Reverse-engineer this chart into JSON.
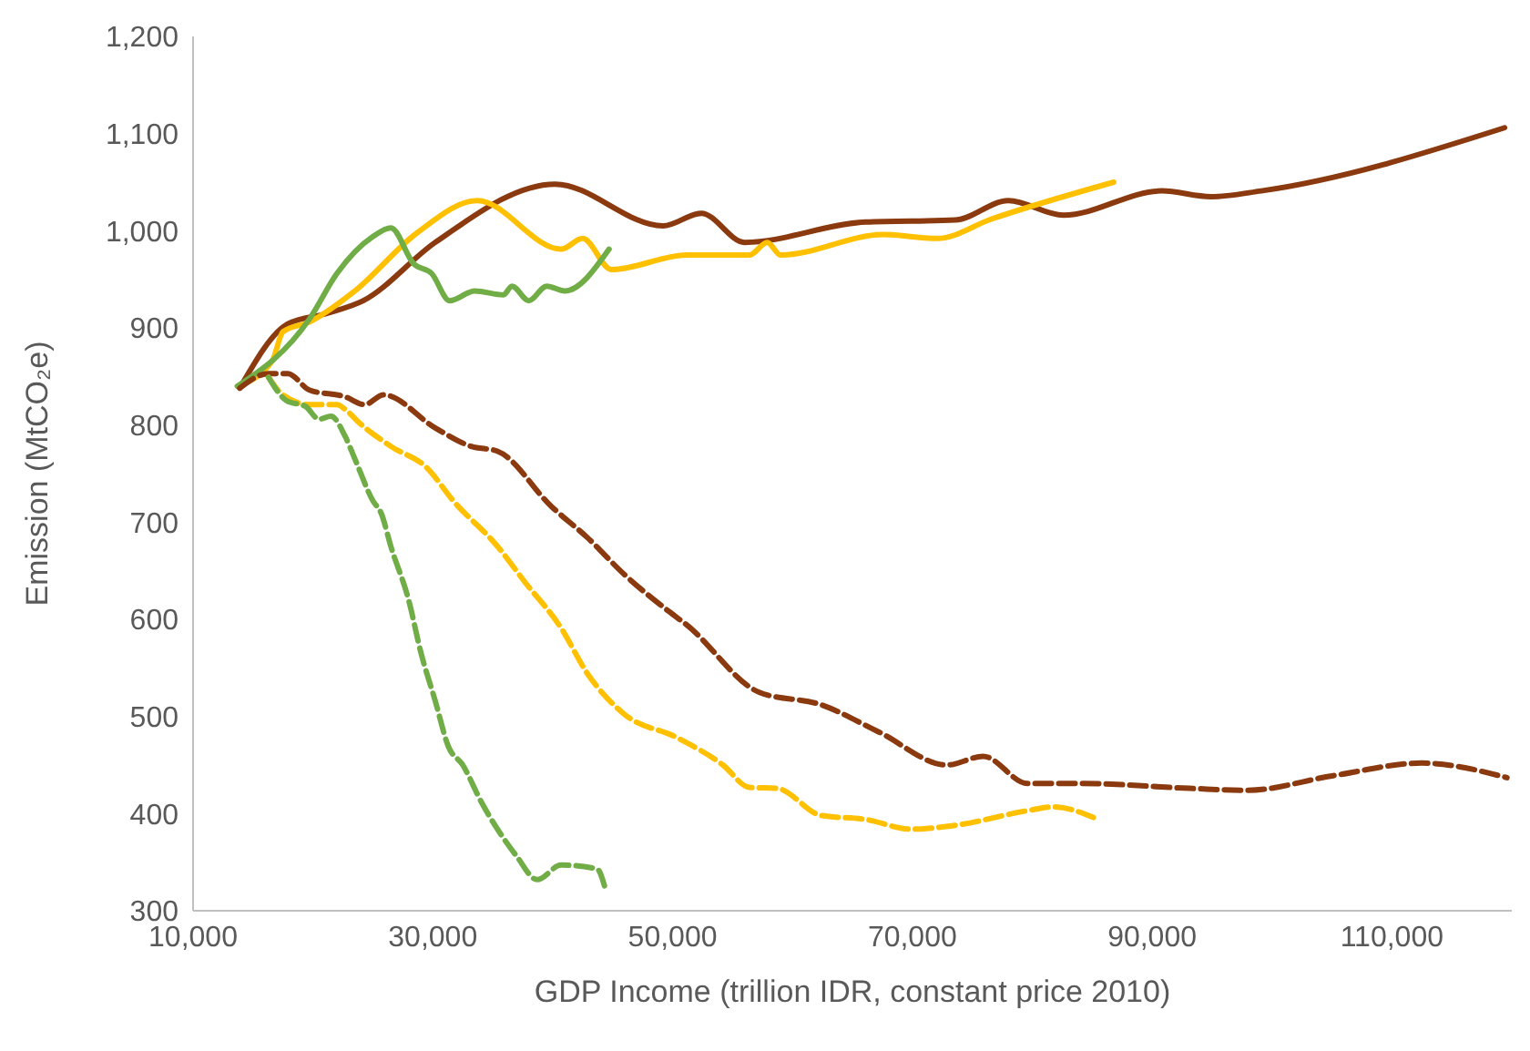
{
  "chart_data": {
    "type": "line",
    "xlabel": "GDP Income (trillion IDR, constant price 2010)",
    "ylabel": "Emission (MtCO₂e)",
    "xlim": [
      10000,
      120000
    ],
    "xticks": [
      {
        "value": 10000,
        "label": "10,000"
      },
      {
        "value": 30000,
        "label": "30,000"
      },
      {
        "value": 50000,
        "label": "50,000"
      },
      {
        "value": 70000,
        "label": "70,000"
      },
      {
        "value": 90000,
        "label": "90,000"
      },
      {
        "value": 110000,
        "label": "110,000"
      }
    ],
    "ylim": [
      300,
      1200
    ],
    "yticks": [
      300,
      400,
      500,
      600,
      700,
      800,
      900,
      {
        "value": 1000,
        "label": "1,000"
      },
      {
        "value": 1100,
        "label": "1,100"
      },
      {
        "value": 1200,
        "label": "1,200"
      }
    ],
    "grid": false,
    "legend": false,
    "marker": "none",
    "series": [
      {
        "color": "#8b3a0f",
        "line_style": "solid",
        "x": [
          13900,
          17900,
          21200,
          24200,
          30200,
          40200,
          49200,
          52400,
          56000,
          66100,
          73600,
          78000,
          82600,
          90800,
          94900,
          99100,
          119400
        ],
        "values": [
          838,
          904,
          915,
          928,
          988,
          1048,
          1005,
          1018,
          988,
          1009,
          1011,
          1031,
          1016,
          1041,
          1035,
          1041,
          1106
        ]
      },
      {
        "color": "#ffc000",
        "line_style": "solid",
        "x": [
          13700,
          16600,
          17500,
          19700,
          23500,
          28700,
          33700,
          40700,
          42500,
          44900,
          51200,
          56400,
          57900,
          59000,
          67600,
          72100,
          76600,
          86800
        ],
        "values": [
          840,
          866,
          896,
          906,
          938,
          998,
          1031,
          981,
          992,
          960,
          975,
          975,
          988,
          975,
          996,
          992,
          1012,
          1050
        ]
      },
      {
        "color": "#70ad47",
        "line_style": "solid",
        "x": [
          13700,
          19700,
          22000,
          25000,
          26500,
          28400,
          29900,
          31400,
          33500,
          35900,
          36600,
          38000,
          39500,
          41000,
          44700
        ],
        "values": [
          840,
          909,
          956,
          994,
          1003,
          966,
          956,
          928,
          938,
          934,
          943,
          928,
          943,
          938,
          981
        ]
      },
      {
        "color": "#8b3a0f",
        "line_style": "dashed",
        "x": [
          13900,
          16300,
          17900,
          19700,
          22700,
          24300,
          25900,
          30200,
          33200,
          35400,
          39900,
          42900,
          45900,
          49700,
          51200,
          57200,
          62400,
          67200,
          72900,
          75900,
          79600,
          84100,
          93100,
          97900,
          105100,
          112500,
          119600
        ],
        "values": [
          838,
          853,
          853,
          836,
          829,
          821,
          831,
          797,
          778,
          773,
          716,
          684,
          647,
          608,
          594,
          525,
          512,
          484,
          450,
          459,
          431,
          431,
          426,
          424,
          439,
          452,
          437
        ]
      },
      {
        "color": "#ffc000",
        "line_style": "dashed",
        "x": [
          16300,
          17500,
          19700,
          22000,
          22700,
          23800,
          26500,
          29500,
          31700,
          35400,
          37700,
          40700,
          42900,
          45900,
          50400,
          54200,
          56400,
          58700,
          62400,
          66100,
          69900,
          73600,
          79600,
          81800,
          85100
        ],
        "values": [
          849,
          831,
          821,
          821,
          816,
          803,
          778,
          756,
          722,
          675,
          638,
          591,
          544,
          503,
          478,
          450,
          427,
          426,
          398,
          394,
          384,
          388,
          403,
          407,
          396
        ]
      },
      {
        "color": "#70ad47",
        "line_style": "dashed",
        "x": [
          16300,
          17800,
          19400,
          20500,
          21500,
          22700,
          23500,
          25000,
          25700,
          26500,
          28000,
          29000,
          30200,
          31300,
          32500,
          34000,
          37000,
          38700,
          40700,
          43700,
          44400
        ],
        "values": [
          849,
          825,
          819,
          806,
          809,
          788,
          765,
          722,
          709,
          675,
          619,
          566,
          516,
          469,
          450,
          413,
          356,
          332,
          347,
          343,
          322
        ]
      }
    ]
  }
}
